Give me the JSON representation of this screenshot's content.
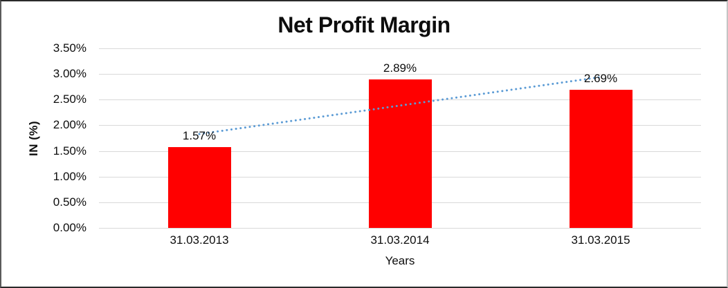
{
  "chart": {
    "title": "Net Profit Margin",
    "y_axis_title": "IN (%)",
    "x_axis_title": "Years"
  },
  "chart_data": {
    "type": "bar",
    "title": "Net Profit Margin",
    "xlabel": "Years",
    "ylabel": "IN (%)",
    "categories": [
      "31.03.2013",
      "31.03.2014",
      "31.03.2015"
    ],
    "values": [
      1.57,
      2.89,
      2.69
    ],
    "data_labels": [
      "1.57%",
      "2.89%",
      "2.69%"
    ],
    "y_ticks": [
      "0.00%",
      "0.50%",
      "1.00%",
      "1.50%",
      "2.00%",
      "2.50%",
      "3.00%",
      "3.50%"
    ],
    "ylim": [
      0,
      3.5
    ],
    "grid": true,
    "legend": "none",
    "bar_color": "#ff0000",
    "gridline_color": "#d9d9d9",
    "trendline": {
      "type": "linear",
      "style": "dotted",
      "color": "#5b9bd5",
      "start_value": 1.83,
      "end_value": 2.94
    }
  }
}
